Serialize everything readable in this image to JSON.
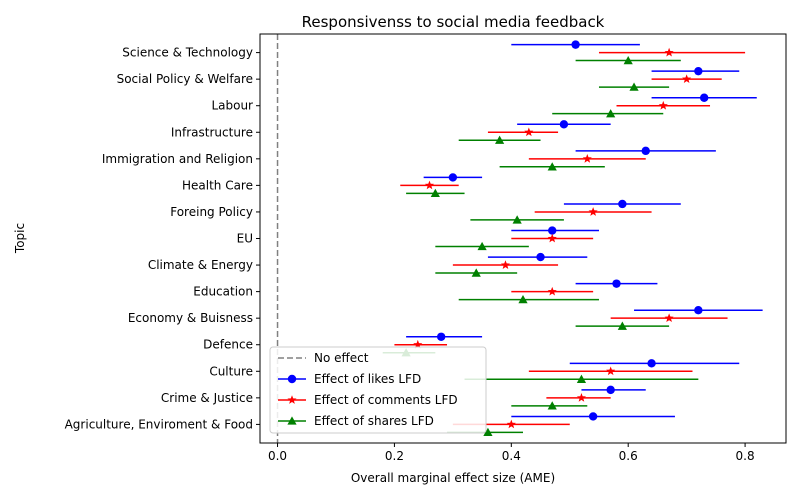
{
  "chart_data": {
    "type": "scatter",
    "title": "Responsivenss to social media feedback",
    "xlabel": "Overall marginal effect size (AME)",
    "ylabel": "Topic",
    "xlim": [
      -0.03,
      0.87
    ],
    "xticks": [
      0.0,
      0.2,
      0.4,
      0.6,
      0.8
    ],
    "xtick_labels": [
      "0.0",
      "0.2",
      "0.4",
      "0.6",
      "0.8"
    ],
    "grid": false,
    "legend_position": "lower-left",
    "reference_line": {
      "x": 0,
      "label": "No effect",
      "color": "#808080",
      "style": "dashed"
    },
    "categories": [
      "Science & Technology",
      "Social Policy & Welfare",
      "Labour",
      "Infrastructure",
      "Immigration and Religion",
      "Health Care",
      "Foreing Policy",
      "EU",
      "Climate & Energy",
      "Education",
      "Economy & Buisness",
      "Defence",
      "Culture",
      "Crime & Justice",
      "Agriculture, Enviroment & Food"
    ],
    "series": [
      {
        "name": "Effect of likes LFD",
        "color": "#0000ff",
        "marker": "circle",
        "offset": -0.3,
        "estimates": [
          0.51,
          0.72,
          0.73,
          0.49,
          0.63,
          0.3,
          0.59,
          0.47,
          0.45,
          0.58,
          0.72,
          0.28,
          0.64,
          0.57,
          0.54
        ],
        "lower": [
          0.4,
          0.64,
          0.64,
          0.41,
          0.51,
          0.25,
          0.49,
          0.4,
          0.36,
          0.51,
          0.61,
          0.22,
          0.5,
          0.52,
          0.4
        ],
        "upper": [
          0.62,
          0.79,
          0.82,
          0.57,
          0.75,
          0.35,
          0.69,
          0.55,
          0.53,
          0.65,
          0.83,
          0.35,
          0.79,
          0.63,
          0.68
        ]
      },
      {
        "name": "Effect of comments LFD",
        "color": "#ff0000",
        "marker": "star",
        "offset": 0,
        "estimates": [
          0.67,
          0.7,
          0.66,
          0.43,
          0.53,
          0.26,
          0.54,
          0.47,
          0.39,
          0.47,
          0.67,
          0.24,
          0.57,
          0.52,
          0.4
        ],
        "lower": [
          0.55,
          0.64,
          0.58,
          0.36,
          0.43,
          0.21,
          0.44,
          0.4,
          0.3,
          0.4,
          0.57,
          0.2,
          0.43,
          0.46,
          0.3
        ],
        "upper": [
          0.8,
          0.76,
          0.74,
          0.48,
          0.63,
          0.31,
          0.64,
          0.54,
          0.48,
          0.54,
          0.77,
          0.29,
          0.71,
          0.57,
          0.5
        ]
      },
      {
        "name": "Effect of shares LFD",
        "color": "#008000",
        "marker": "triangle",
        "offset": 0.3,
        "estimates": [
          0.6,
          0.61,
          0.57,
          0.38,
          0.47,
          0.27,
          0.41,
          0.35,
          0.34,
          0.42,
          0.59,
          0.22,
          0.52,
          0.47,
          0.36
        ],
        "lower": [
          0.51,
          0.55,
          0.47,
          0.31,
          0.38,
          0.22,
          0.33,
          0.27,
          0.27,
          0.31,
          0.51,
          0.18,
          0.32,
          0.4,
          0.29
        ],
        "upper": [
          0.69,
          0.67,
          0.66,
          0.45,
          0.56,
          0.32,
          0.49,
          0.43,
          0.41,
          0.55,
          0.67,
          0.27,
          0.72,
          0.53,
          0.42
        ]
      }
    ]
  }
}
